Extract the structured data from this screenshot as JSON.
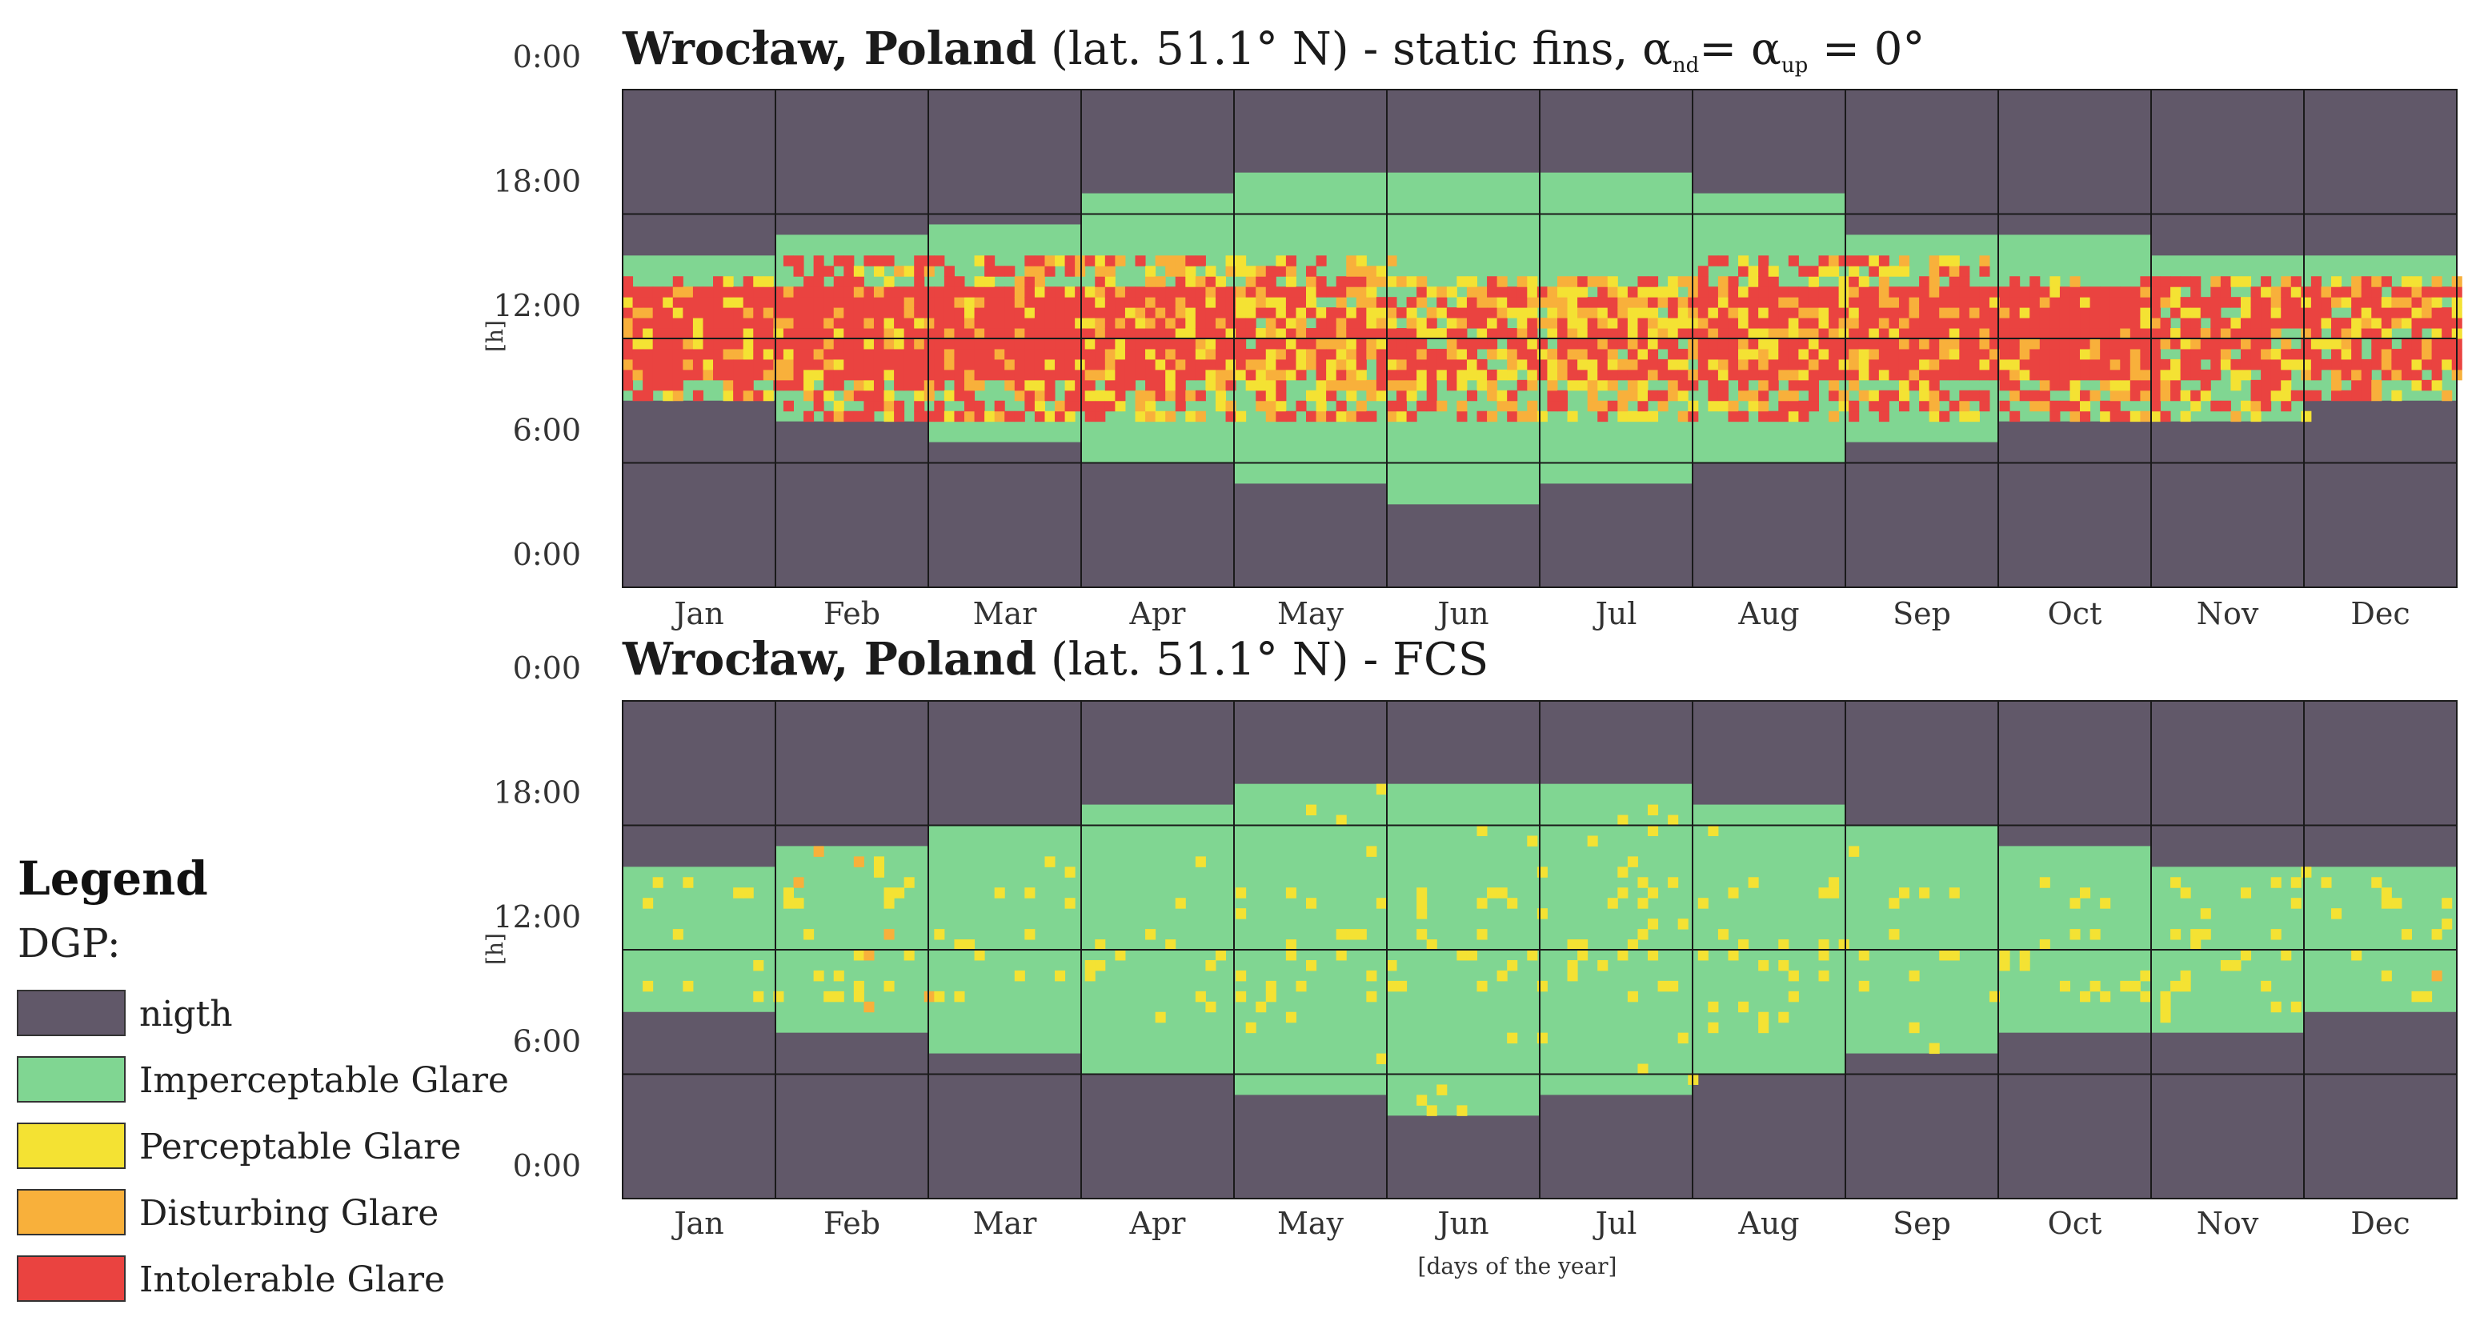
{
  "colors": {
    "night": "#615869",
    "imperceptable": "#80d692",
    "perceptable": "#f4e233",
    "disturbing": "#f8b03b",
    "intolerable": "#ea4340",
    "grid": "#1a1a1a"
  },
  "chart_data": [
    {
      "type": "heatmap",
      "title_bold": "Wrocław, Poland",
      "title_rest": "(lat. 51.1° N) - static fins, ",
      "title_alpha_nd": "α",
      "title_sub_nd": "nd",
      "title_eq": "= ",
      "title_alpha_up": "α",
      "title_sub_up": "up",
      "title_end": " = 0°",
      "ylabel": "[h]",
      "xlabel": "",
      "ytick_labels": [
        "0:00",
        "18:00",
        "12:00",
        "6:00",
        "0:00"
      ],
      "months": [
        "Jan",
        "Feb",
        "Mar",
        "Apr",
        "May",
        "Jun",
        "Jul",
        "Aug",
        "Sep",
        "Oct",
        "Nov",
        "Dec"
      ],
      "xlim_days": [
        1,
        365
      ],
      "ylim_hours": [
        0,
        24
      ],
      "daylight_hours_by_month": [
        [
          9,
          16
        ],
        [
          8,
          17
        ],
        [
          7,
          17.5
        ],
        [
          6,
          19
        ],
        [
          5,
          20
        ],
        [
          4,
          20
        ],
        [
          5,
          20
        ],
        [
          6,
          19
        ],
        [
          7,
          17
        ],
        [
          8,
          17
        ],
        [
          8,
          16
        ],
        [
          9,
          16
        ]
      ],
      "glare_share_by_month": {
        "intolerable": [
          0.55,
          0.6,
          0.65,
          0.5,
          0.35,
          0.3,
          0.35,
          0.55,
          0.6,
          0.6,
          0.45,
          0.45
        ],
        "perceptable_disturbing": [
          0.3,
          0.25,
          0.25,
          0.35,
          0.45,
          0.45,
          0.45,
          0.3,
          0.25,
          0.25,
          0.3,
          0.3
        ]
      },
      "glare_hours_by_month": [
        [
          9,
          15
        ],
        [
          8,
          16
        ],
        [
          8,
          16
        ],
        [
          8,
          16
        ],
        [
          8,
          16
        ],
        [
          8,
          15
        ],
        [
          8,
          15
        ],
        [
          8,
          16
        ],
        [
          8,
          16
        ],
        [
          8,
          15
        ],
        [
          8,
          15
        ],
        [
          9,
          15
        ]
      ]
    },
    {
      "type": "heatmap",
      "title_bold": "Wrocław, Poland",
      "title_rest": "(lat. 51.1° N) - FCS",
      "ylabel": "[h]",
      "xlabel": "[days of the year]",
      "ytick_labels": [
        "0:00",
        "18:00",
        "12:00",
        "6:00",
        "0:00"
      ],
      "months": [
        "Jan",
        "Feb",
        "Mar",
        "Apr",
        "May",
        "Jun",
        "Jul",
        "Aug",
        "Sep",
        "Oct",
        "Nov",
        "Dec"
      ],
      "xlim_days": [
        1,
        365
      ],
      "ylim_hours": [
        0,
        24
      ],
      "daylight_hours_by_month": [
        [
          9,
          16
        ],
        [
          8,
          17
        ],
        [
          7,
          18
        ],
        [
          6,
          19
        ],
        [
          5,
          20
        ],
        [
          4,
          20
        ],
        [
          5,
          20
        ],
        [
          6,
          19
        ],
        [
          7,
          18
        ],
        [
          8,
          17
        ],
        [
          8,
          16
        ],
        [
          9,
          16
        ]
      ],
      "glare_share_by_month": {
        "perceptable": [
          0.05,
          0.08,
          0.03,
          0.05,
          0.08,
          0.1,
          0.1,
          0.1,
          0.05,
          0.08,
          0.12,
          0.1
        ],
        "disturbing": [
          0.01,
          0.02,
          0,
          0,
          0,
          0,
          0,
          0,
          0,
          0,
          0,
          0.01
        ]
      }
    }
  ],
  "legend": {
    "title": "Legend",
    "subtitle": "DGP:",
    "items": [
      {
        "label": "nigth",
        "color_key": "night"
      },
      {
        "label": "Imperceptable Glare",
        "color_key": "imperceptable"
      },
      {
        "label": "Perceptable Glare",
        "color_key": "perceptable"
      },
      {
        "label": "Disturbing Glare",
        "color_key": "disturbing"
      },
      {
        "label": "Intolerable Glare",
        "color_key": "intolerable"
      }
    ]
  }
}
